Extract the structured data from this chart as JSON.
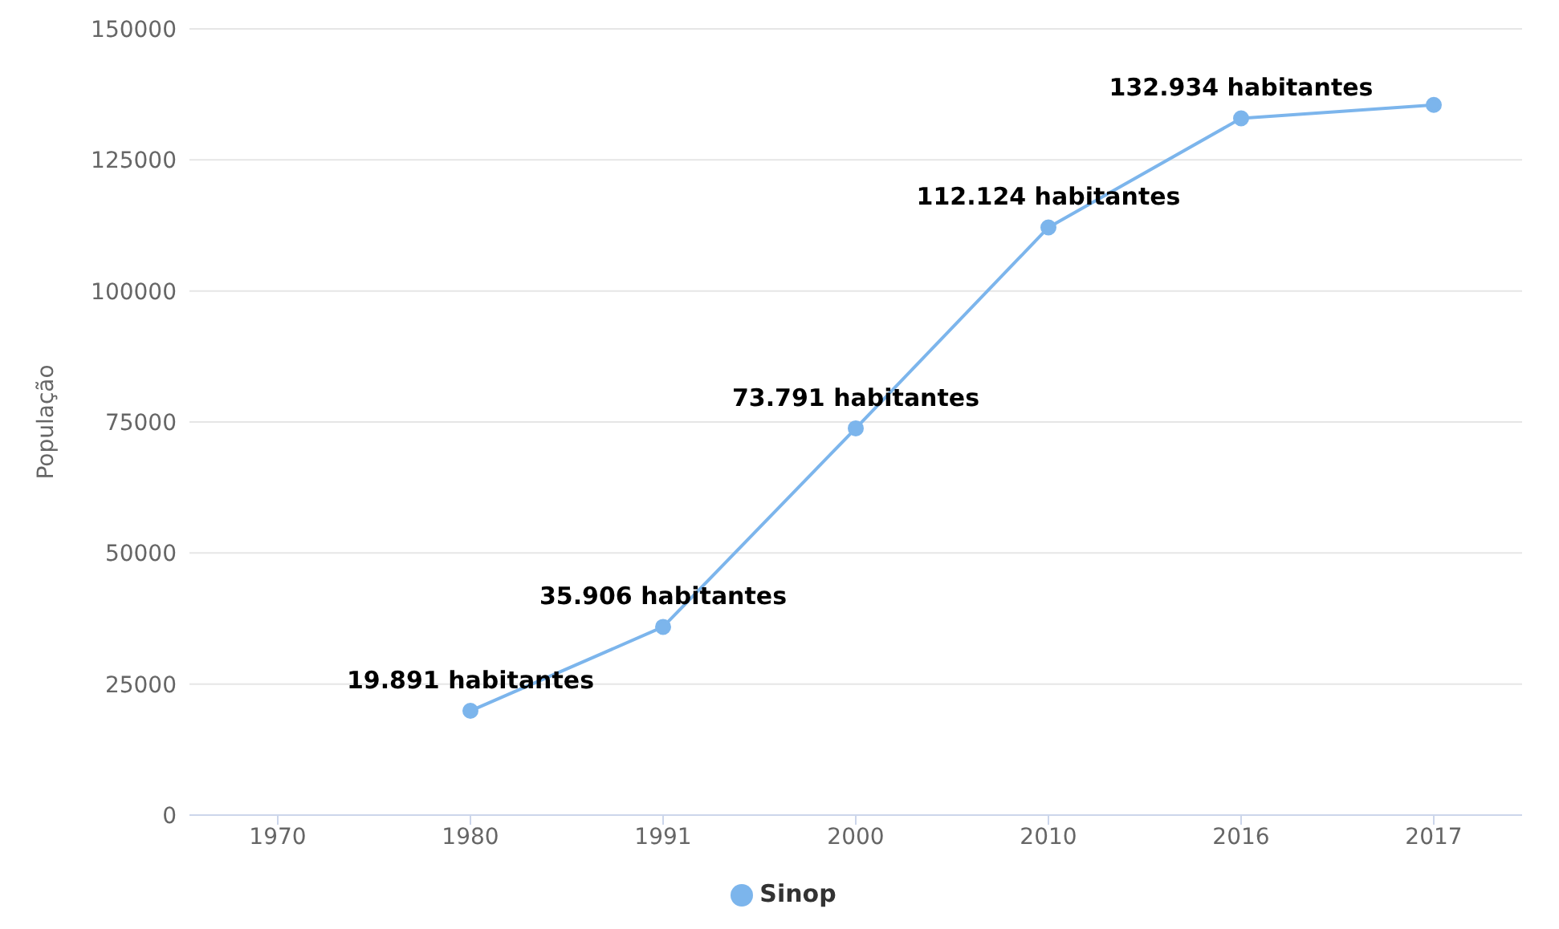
{
  "chart_data": {
    "type": "line",
    "ylabel": "População",
    "categories": [
      "1970",
      "1980",
      "1991",
      "2000",
      "2010",
      "2016",
      "2017"
    ],
    "series": [
      {
        "name": "Sinop",
        "color": "#7cb5ec",
        "values": [
          null,
          19891,
          35906,
          73791,
          112124,
          132934,
          135500
        ],
        "value_labels": [
          null,
          "19.891 habitantes",
          "35.906 habitantes",
          "73.791 habitantes",
          "112.124 habitantes",
          "132.934 habitantes",
          null
        ]
      }
    ],
    "ylim": [
      0,
      150000
    ],
    "yticks": [
      0,
      25000,
      50000,
      75000,
      100000,
      125000,
      150000
    ],
    "grid": "y",
    "legend": "bottom",
    "marker": "circle",
    "line_style": "solid"
  }
}
